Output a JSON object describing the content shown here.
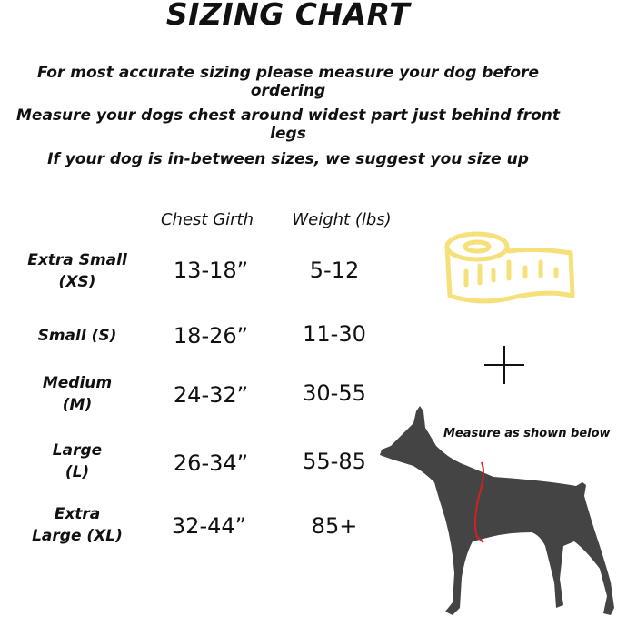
{
  "title": "SIZING CHART",
  "instructions": [
    "For most accurate sizing please measure your dog before ordering",
    "Measure your dogs chest around widest part just behind front legs",
    "If your dog is in-between sizes, we suggest you size up"
  ],
  "table": {
    "headers": [
      "Chest Girth",
      "Weight (lbs)"
    ],
    "rows": [
      {
        "size_line1": "Extra Small",
        "size_line2": "(XS)",
        "chest": "13-18”",
        "weight": "5-12"
      },
      {
        "size_line1": "Small (S)",
        "size_line2": "",
        "chest": "18-26”",
        "weight": "11-30"
      },
      {
        "size_line1": "Medium",
        "size_line2": "(M)",
        "chest": "24-32”",
        "weight": "30-55"
      },
      {
        "size_line1": "Large",
        "size_line2": "(L)",
        "chest": "26-34”",
        "weight": "55-85"
      },
      {
        "size_line1": "Extra",
        "size_line2": "Large (XL)",
        "chest": "32-44”",
        "weight": "85+"
      }
    ]
  },
  "illustration": {
    "measure_note": "Measure as shown below",
    "icons": [
      "tape-measure-icon",
      "plus-icon",
      "dog-silhouette"
    ],
    "colors": {
      "tape": "#f5e07a",
      "dog": "#444444",
      "measure_line": "#d42020"
    }
  }
}
